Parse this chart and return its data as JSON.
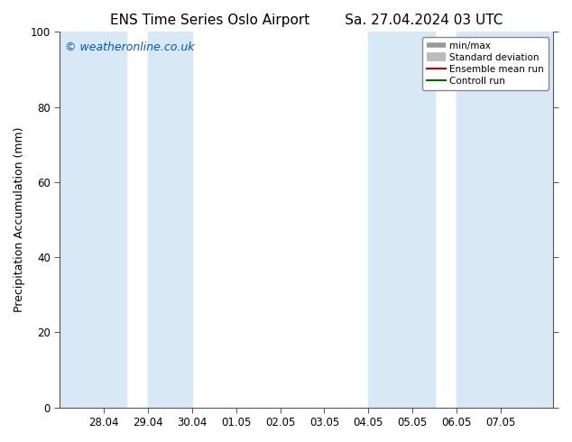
{
  "title_left": "ENS Time Series Oslo Airport",
  "title_right": "Sa. 27.04.2024 03 UTC",
  "ylabel": "Precipitation Accumulation (mm)",
  "watermark": "© weatheronline.co.uk",
  "watermark_color": "#0055cc",
  "ylim": [
    0,
    100
  ],
  "yticks": [
    0,
    20,
    40,
    60,
    80,
    100
  ],
  "background_color": "#ffffff",
  "plot_bg_color": "#ffffff",
  "shade_color": "#d8e8f5",
  "x_tick_labels": [
    "28.04",
    "29.04",
    "30.04",
    "01.05",
    "02.05",
    "03.05",
    "04.05",
    "05.05",
    "06.05",
    "07.05"
  ],
  "x_tick_positions": [
    28,
    29,
    30,
    31,
    32,
    33,
    34,
    35,
    36,
    37
  ],
  "xlim": [
    27.0,
    38.2
  ],
  "shade_bands": [
    [
      27.0,
      28.5
    ],
    [
      29.0,
      30.0
    ],
    [
      34.0,
      35.5
    ],
    [
      36.0,
      38.2
    ]
  ],
  "title_fontsize": 11,
  "axis_fontsize": 9,
  "tick_fontsize": 8.5,
  "watermark_fontsize": 9
}
